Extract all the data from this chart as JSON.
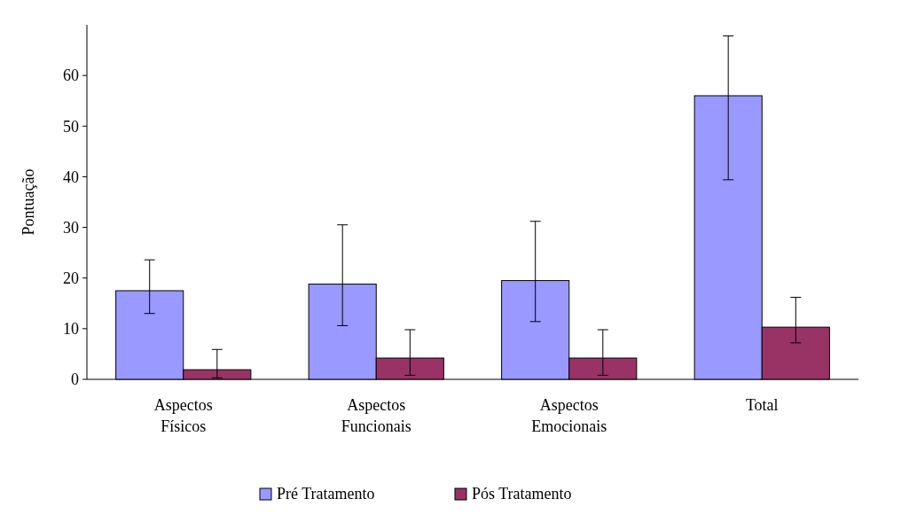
{
  "chart_data": {
    "type": "bar",
    "ylabel": "Pontuação",
    "categories": [
      "Aspectos\nFísicos",
      "Aspectos\nFuncionais",
      "Aspectos\nEmocionais",
      "Total"
    ],
    "series": [
      {
        "name": "Pré Tratamento",
        "color": "#9999ff",
        "values": [
          17.5,
          18.8,
          19.5,
          56
        ],
        "errors": [
          [
            13,
            23.6
          ],
          [
            10.6,
            30.5
          ],
          [
            11.4,
            31.2
          ],
          [
            39.4,
            67.8
          ]
        ]
      },
      {
        "name": "Pós Tratamento",
        "color": "#993366",
        "values": [
          1.9,
          4.2,
          4.2,
          10.3
        ],
        "errors": [
          [
            0.3,
            5.9
          ],
          [
            0.8,
            9.8
          ],
          [
            0.8,
            9.8
          ],
          [
            7.2,
            16.2
          ]
        ]
      }
    ],
    "ylim": [
      0,
      70
    ],
    "yticks": [
      0,
      10,
      20,
      30,
      40,
      50,
      60
    ],
    "grid": false,
    "legend": "bottom"
  }
}
